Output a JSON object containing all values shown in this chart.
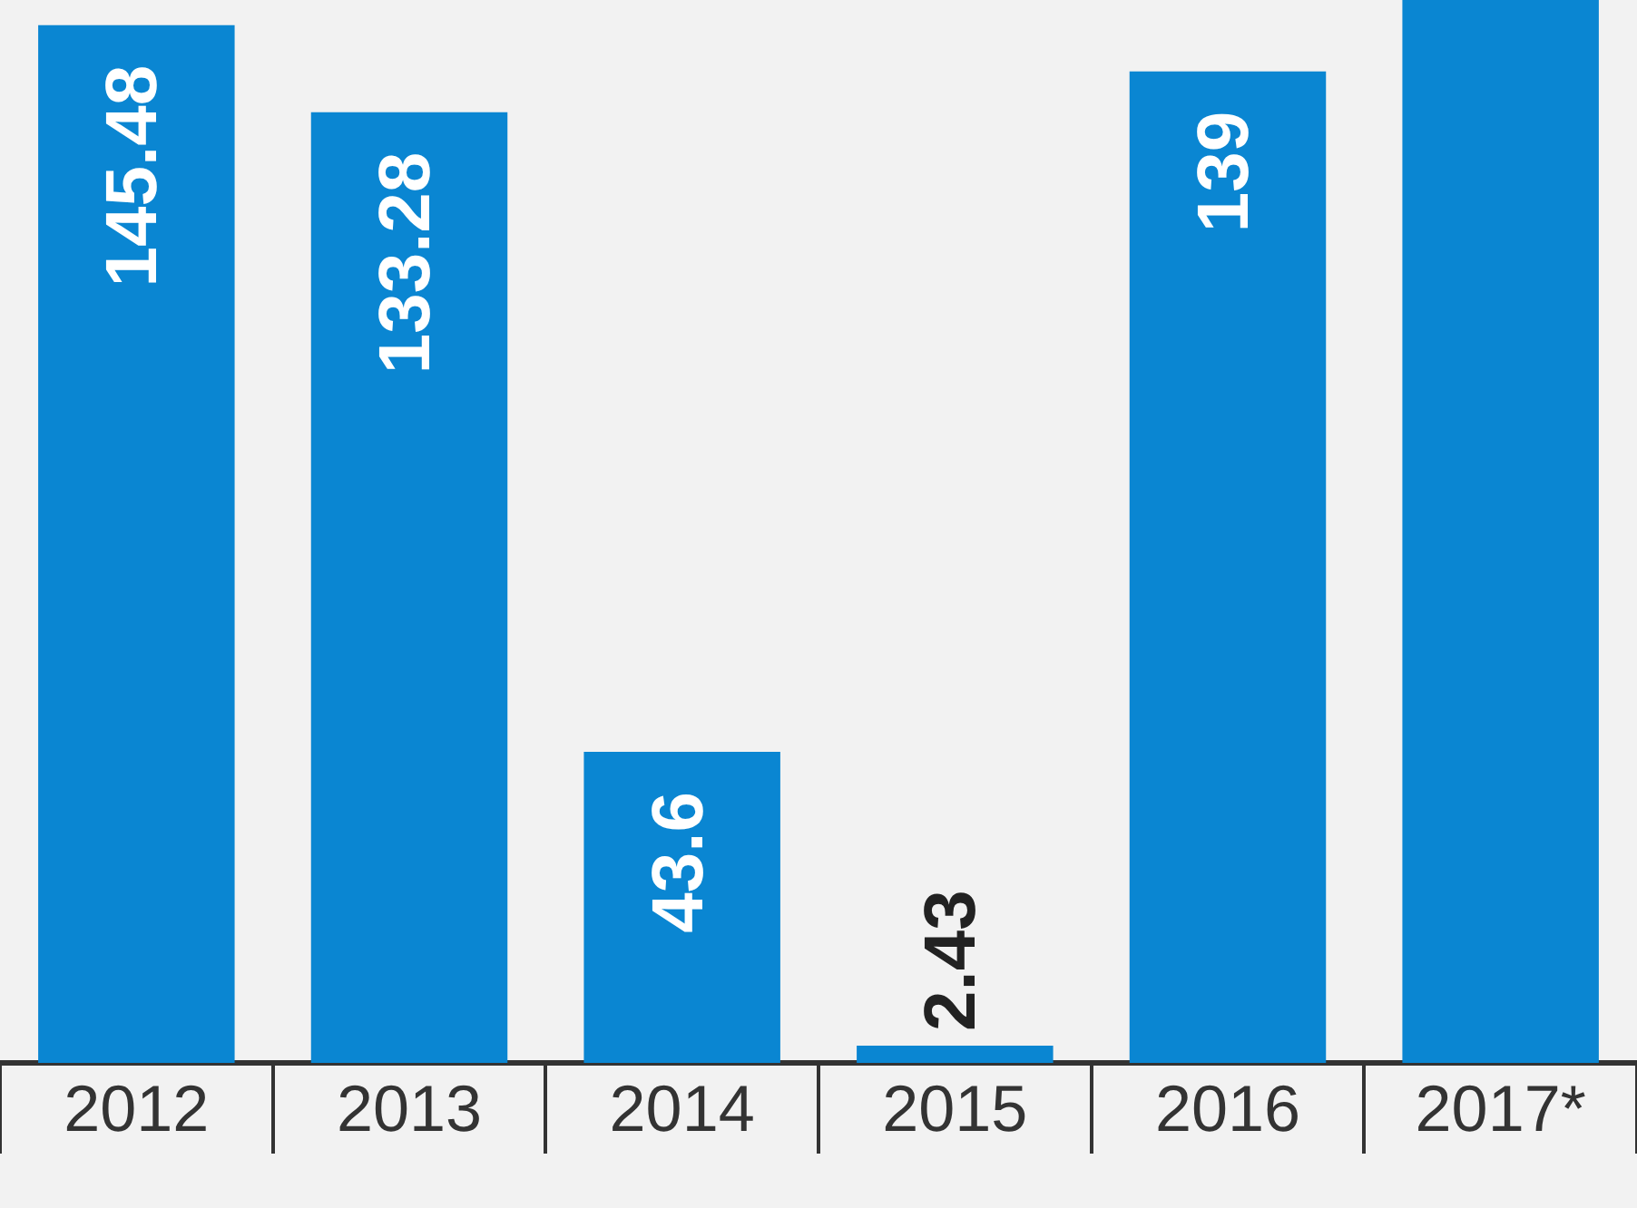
{
  "chart_data": {
    "type": "bar",
    "categories": [
      "2012",
      "2013",
      "2014",
      "2015",
      "2016",
      "2017*"
    ],
    "values": [
      145.48,
      133.28,
      43.6,
      2.43,
      139,
      149
    ],
    "value_labels": [
      "145.48",
      "133.28",
      "43.6",
      "2.43",
      "139",
      null
    ],
    "color": "#0a86d2",
    "ylim": [
      0,
      149
    ],
    "grid": false,
    "legend": false,
    "tick_labels": "x"
  }
}
